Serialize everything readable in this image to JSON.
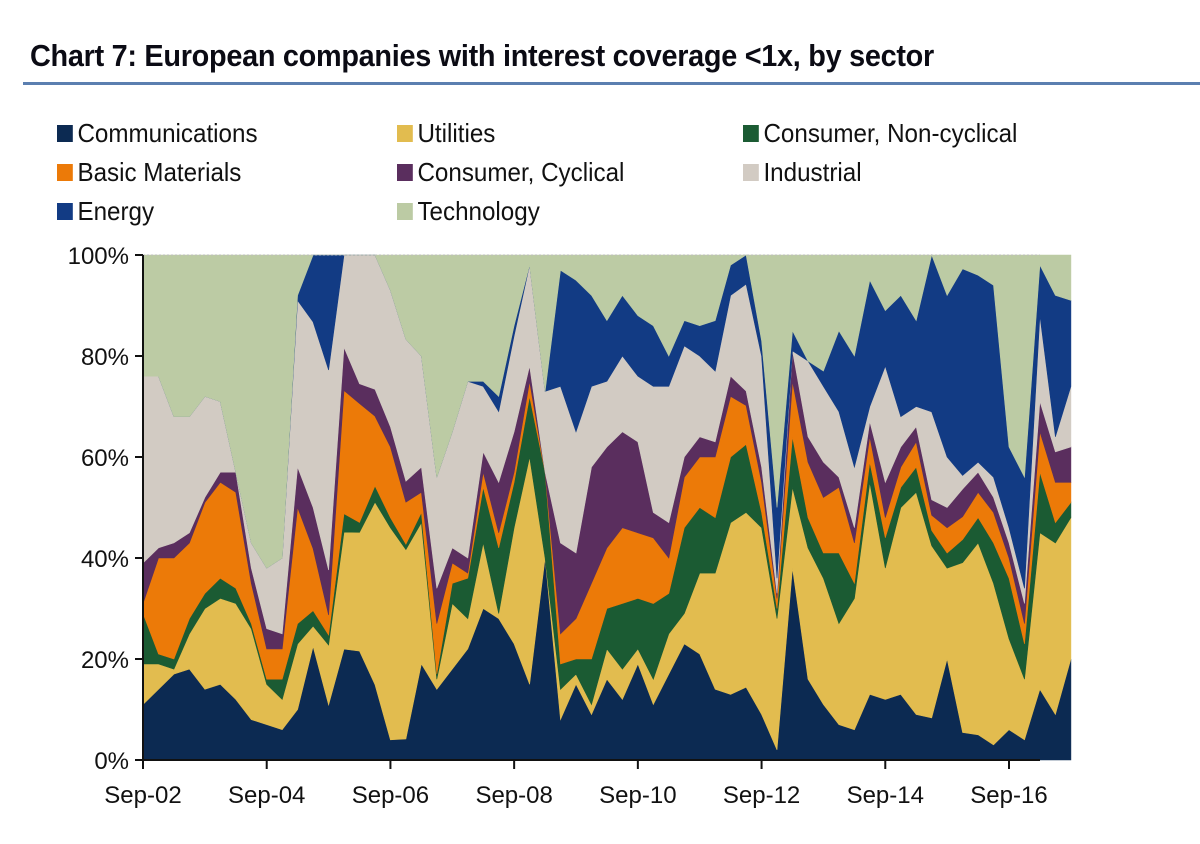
{
  "title": "Chart 7: European companies with interest coverage <1x, by sector",
  "chart_data": {
    "type": "area",
    "stacked": true,
    "normalized": true,
    "title": "Chart 7: European companies with interest coverage <1x, by sector",
    "xlabel": "",
    "ylabel": "",
    "ylim": [
      0,
      100
    ],
    "yticks": [
      "0%",
      "20%",
      "40%",
      "60%",
      "80%",
      "100%"
    ],
    "ytick_values": [
      0,
      20,
      40,
      60,
      80,
      100
    ],
    "xtick_labels": [
      "Sep-02",
      "Sep-04",
      "Sep-06",
      "Sep-08",
      "Sep-10",
      "Sep-12",
      "Sep-14",
      "Sep-16"
    ],
    "xtick_index": [
      0,
      8,
      16,
      24,
      32,
      40,
      48,
      56
    ],
    "x_frequency": "quarterly",
    "x_start": "Sep-02",
    "x_end": "Mar-17",
    "legend_position": "top",
    "grid": false,
    "series": [
      {
        "name": "Communications",
        "color": "#0c2a52",
        "values": [
          11,
          14,
          17,
          18,
          14,
          15,
          12,
          8,
          7,
          6,
          10,
          22,
          11,
          18,
          22,
          14,
          4,
          4,
          19,
          14,
          18,
          22,
          30,
          28,
          23,
          15,
          40,
          8,
          15,
          9,
          16,
          12,
          19,
          11,
          17,
          23,
          21,
          14,
          13,
          15,
          9,
          2,
          38,
          16,
          11,
          7,
          6,
          13,
          12,
          13,
          9,
          11,
          20,
          6,
          5,
          3,
          6,
          4,
          14,
          9,
          20
        ]
      },
      {
        "name": "Utilities",
        "color": "#e2bc4f",
        "values": [
          8,
          5,
          1,
          7,
          16,
          17,
          19,
          18,
          8,
          6,
          13,
          4,
          12,
          19,
          24,
          34,
          42,
          36,
          28,
          2,
          13,
          6,
          13,
          1,
          23,
          45,
          0,
          6,
          2,
          2,
          6,
          6,
          3,
          5,
          8,
          6,
          16,
          23,
          34,
          36,
          37,
          26,
          16,
          26,
          25,
          20,
          26,
          42,
          26,
          37,
          44,
          45,
          18,
          37,
          38,
          32,
          18,
          12,
          31,
          34,
          28
        ]
      },
      {
        "name": "Consumer, Non-cyclical",
        "color": "#1b5b33",
        "values": [
          10,
          2,
          2,
          3,
          3,
          4,
          3,
          1,
          1,
          4,
          4,
          3,
          2,
          3,
          2,
          3,
          2,
          1,
          2,
          1,
          4,
          8,
          11,
          13,
          9,
          12,
          17,
          5,
          3,
          9,
          8,
          13,
          10,
          15,
          8,
          17,
          13,
          11,
          13,
          14,
          3,
          2,
          10,
          6,
          5,
          14,
          3,
          4,
          6,
          4,
          5,
          4,
          3,
          5,
          5,
          8,
          12,
          7,
          12,
          4,
          3
        ]
      },
      {
        "name": "Basic Materials",
        "color": "#ec7a08",
        "values": [
          2,
          19,
          20,
          15,
          18,
          19,
          19,
          8,
          6,
          6,
          23,
          12,
          4,
          20,
          24,
          13,
          14,
          8,
          4,
          10,
          4,
          1,
          3,
          3,
          2,
          3,
          0,
          6,
          8,
          15,
          12,
          15,
          13,
          13,
          7,
          10,
          10,
          12,
          12,
          8,
          6,
          2,
          11,
          11,
          11,
          13,
          8,
          5,
          4,
          4,
          5,
          4,
          5,
          5,
          5,
          6,
          4,
          4,
          8,
          8,
          4
        ]
      },
      {
        "name": "Consumer, Cyclical",
        "color": "#5a2e5e",
        "values": [
          8,
          2,
          3,
          2,
          1,
          2,
          4,
          3,
          4,
          3,
          8,
          8,
          9,
          7,
          4,
          5,
          4,
          4,
          5,
          7,
          3,
          3,
          4,
          10,
          8,
          3,
          0,
          18,
          13,
          23,
          20,
          19,
          18,
          5,
          7,
          4,
          4,
          3,
          4,
          3,
          3,
          1,
          6,
          5,
          7,
          2,
          3,
          3,
          7,
          4,
          3,
          4,
          4,
          6,
          4,
          3,
          3,
          4,
          6,
          6,
          7
        ]
      },
      {
        "name": "Industrial",
        "color": "#d2cbc3",
        "values": [
          37,
          34,
          25,
          23,
          20,
          14,
          0,
          5,
          12,
          15,
          33,
          36,
          40,
          15,
          26,
          25,
          27,
          27,
          22,
          22,
          23,
          35,
          13,
          14,
          19,
          20,
          16,
          31,
          24,
          16,
          13,
          15,
          13,
          25,
          27,
          22,
          16,
          14,
          16,
          22,
          22,
          3,
          0,
          15,
          15,
          13,
          12,
          3,
          23,
          6,
          4,
          23,
          10,
          3,
          2,
          4,
          3,
          3,
          17,
          3,
          12
        ]
      },
      {
        "name": "Energy",
        "color": "#123b84",
        "values": [
          0,
          0,
          0,
          0,
          0,
          0,
          0,
          0,
          0,
          0,
          1,
          13,
          23,
          0,
          0,
          0,
          0,
          0,
          0,
          0,
          0,
          0,
          1,
          3,
          2,
          0,
          0,
          23,
          30,
          18,
          12,
          12,
          12,
          12,
          6,
          5,
          6,
          10,
          6,
          6,
          3,
          14,
          4,
          0,
          3,
          16,
          22,
          25,
          11,
          24,
          17,
          41,
          32,
          45,
          37,
          38,
          16,
          22,
          10,
          28,
          17
        ]
      },
      {
        "name": "Technology",
        "color": "#bccba4",
        "values": [
          24,
          24,
          32,
          32,
          28,
          29,
          43,
          57,
          62,
          60,
          8,
          0,
          0,
          0,
          0,
          0,
          7,
          16,
          20,
          44,
          35,
          25,
          25,
          28,
          14,
          2,
          27,
          3,
          5,
          8,
          13,
          8,
          12,
          14,
          20,
          13,
          14,
          13,
          2,
          0,
          17,
          50,
          15,
          21,
          23,
          15,
          20,
          5,
          11,
          8,
          13,
          0,
          8,
          3,
          4,
          6,
          38,
          44,
          2,
          8,
          9
        ]
      }
    ]
  }
}
